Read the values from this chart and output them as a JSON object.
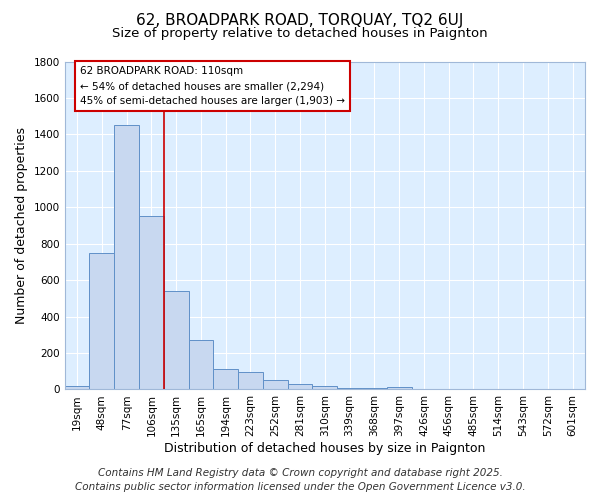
{
  "title1": "62, BROADPARK ROAD, TORQUAY, TQ2 6UJ",
  "title2": "Size of property relative to detached houses in Paignton",
  "xlabel": "Distribution of detached houses by size in Paignton",
  "ylabel": "Number of detached properties",
  "footer1": "Contains HM Land Registry data © Crown copyright and database right 2025.",
  "footer2": "Contains public sector information licensed under the Open Government Licence v3.0.",
  "bar_labels": [
    "19sqm",
    "48sqm",
    "77sqm",
    "106sqm",
    "135sqm",
    "165sqm",
    "194sqm",
    "223sqm",
    "252sqm",
    "281sqm",
    "310sqm",
    "339sqm",
    "368sqm",
    "397sqm",
    "426sqm",
    "456sqm",
    "485sqm",
    "514sqm",
    "543sqm",
    "572sqm",
    "601sqm"
  ],
  "bar_values": [
    20,
    750,
    1450,
    950,
    540,
    270,
    110,
    95,
    50,
    30,
    20,
    8,
    8,
    12,
    5,
    5,
    5,
    3,
    2,
    2,
    2
  ],
  "bar_color": "#c8d8f0",
  "bar_edge_color": "#6090c8",
  "line_x_index": 3,
  "line_color": "#cc0000",
  "annotation_text": "62 BROADPARK ROAD: 110sqm\n← 54% of detached houses are smaller (2,294)\n45% of semi-detached houses are larger (1,903) →",
  "annotation_box_color": "#ffffff",
  "annotation_box_edge": "#cc0000",
  "ylim": [
    0,
    1800
  ],
  "yticks": [
    0,
    200,
    400,
    600,
    800,
    1000,
    1200,
    1400,
    1600,
    1800
  ],
  "fig_bg_color": "#ffffff",
  "plot_bg_color": "#ddeeff",
  "grid_color": "#ffffff",
  "title_fontsize": 11,
  "subtitle_fontsize": 9.5,
  "axis_label_fontsize": 9,
  "tick_fontsize": 7.5,
  "footer_fontsize": 7.5
}
